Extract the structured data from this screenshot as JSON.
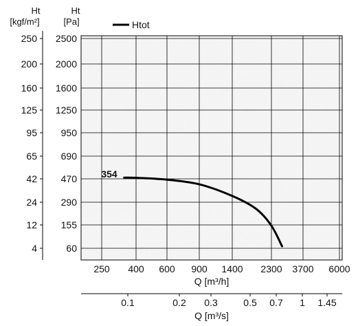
{
  "chart_data": {
    "type": "line",
    "y_left_outer": {
      "label_line1": "Ht",
      "label_line2": "[kgf/m²]",
      "ticks": [
        "250",
        "200",
        "160",
        "125",
        "95",
        "65",
        "42",
        "24",
        "12",
        "4"
      ]
    },
    "y_left_inner": {
      "label_line1": "Ht",
      "label_line2": "[Pa]",
      "ticks": [
        "2500",
        "2000",
        "1600",
        "1250",
        "950",
        "690",
        "470",
        "290",
        "155",
        "60"
      ]
    },
    "x_primary": {
      "label": "Q [m³/h]",
      "ticks": [
        "250",
        "400",
        "600",
        "900",
        "1400",
        "2300",
        "3700",
        "6000"
      ]
    },
    "x_secondary": {
      "label": "Q [m³/s]",
      "ticks": [
        "0.1",
        "0.2",
        "0.3",
        "0.5",
        "0.7",
        "1",
        "1.45"
      ]
    },
    "series": [
      {
        "name": "Htot",
        "color": "#000000",
        "x_unit": "m³/h",
        "y_unit": "Pa",
        "points": [
          [
            340,
            480
          ],
          [
            400,
            478
          ],
          [
            600,
            462
          ],
          [
            900,
            420
          ],
          [
            1400,
            330
          ],
          [
            1900,
            240
          ],
          [
            2300,
            150
          ],
          [
            2700,
            65
          ]
        ]
      }
    ],
    "annotations": [
      {
        "text": "354",
        "x": 340,
        "y": 480
      }
    ],
    "grid": true,
    "legend_position": "top"
  }
}
